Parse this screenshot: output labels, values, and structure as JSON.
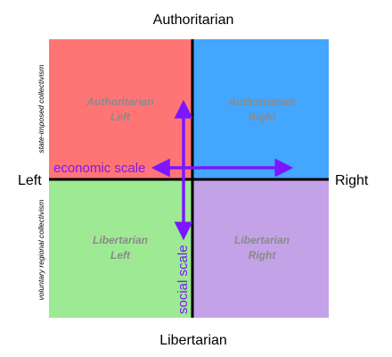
{
  "axes": {
    "top": "Authoritarian",
    "bottom": "Libertarian",
    "left": "Left",
    "right": "Right"
  },
  "side_labels": {
    "upper": "state-imposed collectivism",
    "lower": "voluntary regional collectivism"
  },
  "quadrants": {
    "top_left": {
      "line1": "Authoritarian",
      "line2": "Left",
      "color": "#ff7575"
    },
    "top_right": {
      "line1": "Authoritarian",
      "line2": "Right",
      "color": "#43a6ff"
    },
    "bottom_left": {
      "line1": "Libertarian",
      "line2": "Left",
      "color": "#9ee993"
    },
    "bottom_right": {
      "line1": "Libertarian",
      "line2": "Right",
      "color": "#c3a2e8"
    }
  },
  "scales": {
    "economic": "economic scale",
    "social": "social scale"
  },
  "colors": {
    "arrow": "#7b16ff",
    "quadrant_text": "#8a8a8a",
    "axis_line": "#000000"
  }
}
